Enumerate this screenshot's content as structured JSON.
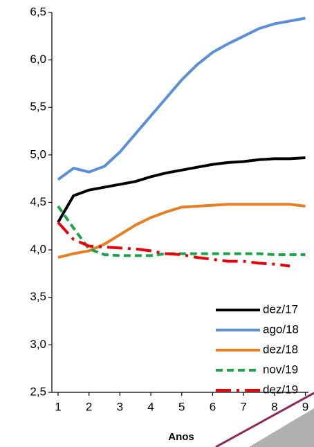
{
  "chart_data": {
    "type": "line",
    "x": [
      1,
      1.5,
      2,
      2.5,
      3,
      3.5,
      4,
      4.5,
      5,
      5.5,
      6,
      6.5,
      7,
      7.5,
      8,
      8.5,
      9
    ],
    "xlabel": "Anos",
    "xlim": [
      0.8,
      9.1
    ],
    "xticks": [
      1,
      2,
      3,
      4,
      5,
      6,
      7,
      8,
      9
    ],
    "ylim": [
      2.5,
      6.5
    ],
    "yticks": [
      {
        "value": 2.5,
        "label": "2,5"
      },
      {
        "value": 3,
        "label": "3,0"
      },
      {
        "value": 3.5,
        "label": "3,5"
      },
      {
        "value": 4,
        "label": "4,0"
      },
      {
        "value": 4.5,
        "label": "4,5"
      },
      {
        "value": 5,
        "label": "5,0"
      },
      {
        "value": 5.5,
        "label": "5,5"
      },
      {
        "value": 6,
        "label": "6,0"
      },
      {
        "value": 6.5,
        "label": "6,5"
      }
    ],
    "grid": false,
    "legend": "lower right",
    "series": [
      {
        "name": "dez/17",
        "color": "#000000",
        "dash": "solid",
        "values": [
          4.29,
          4.57,
          4.63,
          4.66,
          4.69,
          4.72,
          4.77,
          4.81,
          4.84,
          4.87,
          4.9,
          4.92,
          4.93,
          4.95,
          4.96,
          4.96,
          4.97
        ]
      },
      {
        "name": "ago/18",
        "color": "#5b8fd6",
        "dash": "solid",
        "values": [
          4.74,
          4.86,
          4.82,
          4.88,
          5.03,
          5.22,
          5.41,
          5.6,
          5.79,
          5.95,
          6.08,
          6.17,
          6.25,
          6.33,
          6.38,
          6.41,
          6.44
        ]
      },
      {
        "name": "dez/18",
        "color": "#e67e22",
        "dash": "solid",
        "values": [
          3.92,
          3.96,
          3.99,
          4.06,
          4.16,
          4.26,
          4.34,
          4.4,
          4.45,
          4.46,
          4.47,
          4.48,
          4.48,
          4.48,
          4.48,
          4.48,
          4.46
        ]
      },
      {
        "name": "nov/19",
        "color": "#1fa34a",
        "dash": "dashed",
        "values": [
          4.46,
          4.23,
          4.01,
          3.95,
          3.94,
          3.94,
          3.94,
          3.96,
          3.96,
          3.96,
          3.96,
          3.96,
          3.96,
          3.96,
          3.95,
          3.95,
          3.95
        ]
      },
      {
        "name": "dez/19",
        "color": "#e8000b",
        "dash": "dashdot",
        "values": [
          4.29,
          4.11,
          4.04,
          4.03,
          4.02,
          4.01,
          3.99,
          3.96,
          3.95,
          3.92,
          3.9,
          3.88,
          3.88,
          3.86,
          3.85,
          3.83,
          null
        ]
      }
    ]
  }
}
